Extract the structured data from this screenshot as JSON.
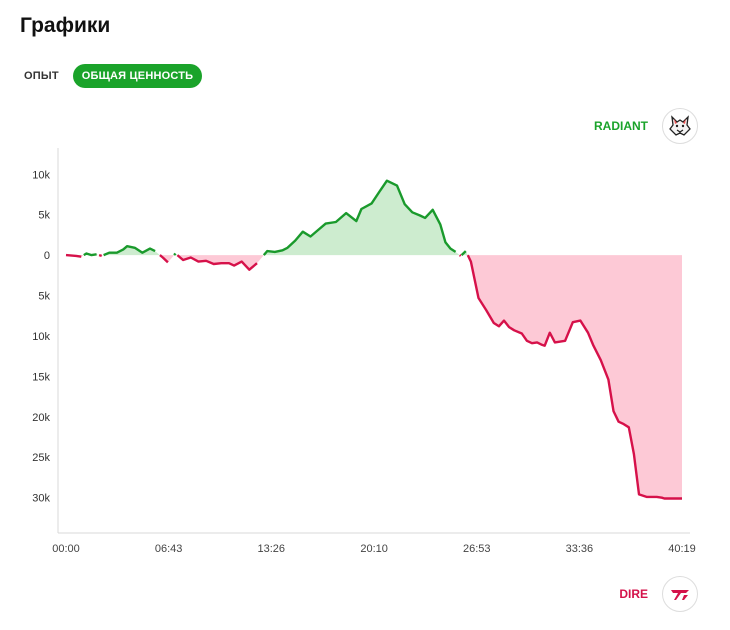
{
  "header": {
    "title": "Графики"
  },
  "tabs": [
    {
      "label": "ОПЫТ",
      "active": false
    },
    {
      "label": "ОБЩАЯ ЦЕННОСТЬ",
      "active": true
    }
  ],
  "teams": {
    "radiant": {
      "label": "RADIANT",
      "color": "#1aa32a",
      "logo_icon": "wolf-icon"
    },
    "dire": {
      "label": "DIRE",
      "color": "#d4124a",
      "logo_icon": "t1-icon"
    }
  },
  "colors": {
    "positive_line": "#1a9a2c",
    "positive_fill": "#cdeccf",
    "negative_line": "#d6114a",
    "negative_fill": "#fdc9d6"
  },
  "chart_data": {
    "type": "area",
    "y_tick_labels": [
      "10k",
      "5k",
      "0",
      "5k",
      "10k",
      "15k",
      "20k",
      "25k",
      "30k"
    ],
    "y_tick_values": [
      10000,
      5000,
      0,
      -5000,
      -10000,
      -15000,
      -20000,
      -25000,
      -30000
    ],
    "x_tick_labels": [
      "00:00",
      "06:43",
      "13:26",
      "20:10",
      "26:53",
      "33:36",
      "40:19"
    ],
    "x_tick_seconds": [
      0,
      403,
      806,
      1210,
      1613,
      2016,
      2419
    ],
    "xlim_seconds": [
      0,
      2419
    ],
    "ylim": [
      -34000,
      13000
    ],
    "series": [
      {
        "x": [
          0,
          40,
          60,
          80,
          100,
          120,
          140,
          170,
          200,
          225,
          240,
          270,
          300,
          330,
          350,
          380,
          400,
          430,
          460,
          490,
          520,
          550,
          580,
          610,
          640,
          660,
          690,
          720,
          750,
          790,
          820,
          850,
          870,
          900,
          930,
          960,
          990,
          1020,
          1060,
          1100,
          1140,
          1160,
          1200,
          1230,
          1260,
          1300,
          1330,
          1360,
          1390,
          1410,
          1440,
          1470,
          1490,
          1510,
          1530,
          1550,
          1570,
          1590,
          1620,
          1650,
          1680,
          1700,
          1720,
          1740,
          1760,
          1790,
          1810,
          1830,
          1850,
          1870,
          1880,
          1900,
          1920,
          1960,
          1990,
          2020,
          2050,
          2070,
          2100,
          2130,
          2150,
          2170,
          2190,
          2210,
          2230,
          2250,
          2280,
          2300,
          2320,
          2340,
          2350,
          2370,
          2390,
          2410,
          2419
        ],
        "y": [
          0,
          -100,
          -200,
          200,
          0,
          100,
          -100,
          300,
          300,
          700,
          1100,
          900,
          300,
          800,
          500,
          -300,
          -900,
          200,
          -600,
          -300,
          -800,
          -700,
          -1100,
          -1000,
          -1000,
          -1300,
          -800,
          -1800,
          -1000,
          500,
          400,
          600,
          900,
          1800,
          2900,
          2300,
          3100,
          3900,
          4100,
          5200,
          4200,
          5700,
          6400,
          7800,
          9200,
          8600,
          6300,
          5300,
          4900,
          4600,
          5600,
          3800,
          1600,
          800,
          400,
          -100,
          500,
          -800,
          -5300,
          -6800,
          -8400,
          -8800,
          -8100,
          -8900,
          -9300,
          -9700,
          -10600,
          -10900,
          -10800,
          -11100,
          -11200,
          -9600,
          -10800,
          -10600,
          -8300,
          -8100,
          -9600,
          -11100,
          -13000,
          -15400,
          -19300,
          -20600,
          -20900,
          -21300,
          -24600,
          -29600,
          -29900,
          -29900,
          -29900,
          -30000,
          -30100,
          -30100,
          -30100,
          -30100,
          -30100
        ]
      }
    ]
  }
}
